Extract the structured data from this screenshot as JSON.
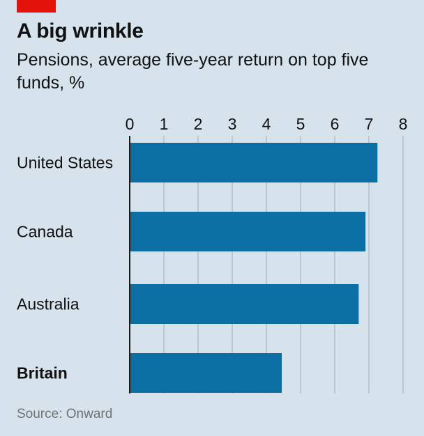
{
  "colors": {
    "accent": "#e3120b",
    "bar": "#0b6fa3",
    "grid": "#b4c0c8",
    "axis": "#1a1a1a",
    "text": "#111111",
    "source": "#6d7276"
  },
  "header": {
    "title": "A big wrinkle",
    "subtitle": "Pensions, average five-year return on top five funds, %"
  },
  "footer": {
    "source": "Source: Onward"
  },
  "chart_data": {
    "type": "bar",
    "orientation": "horizontal",
    "title": "A big wrinkle",
    "subtitle": "Pensions, average five-year return on top five funds, %",
    "categories": [
      "United States",
      "Canada",
      "Australia",
      "Britain"
    ],
    "highlighted": [
      "Britain"
    ],
    "values": [
      7.25,
      6.9,
      6.7,
      4.45
    ],
    "xlim": [
      0,
      8
    ],
    "xticks": [
      "0",
      "1",
      "2",
      "3",
      "4",
      "5",
      "6",
      "7",
      "8"
    ],
    "xlabel": "",
    "ylabel": "",
    "grid": "vertical",
    "tick_position": "top"
  }
}
